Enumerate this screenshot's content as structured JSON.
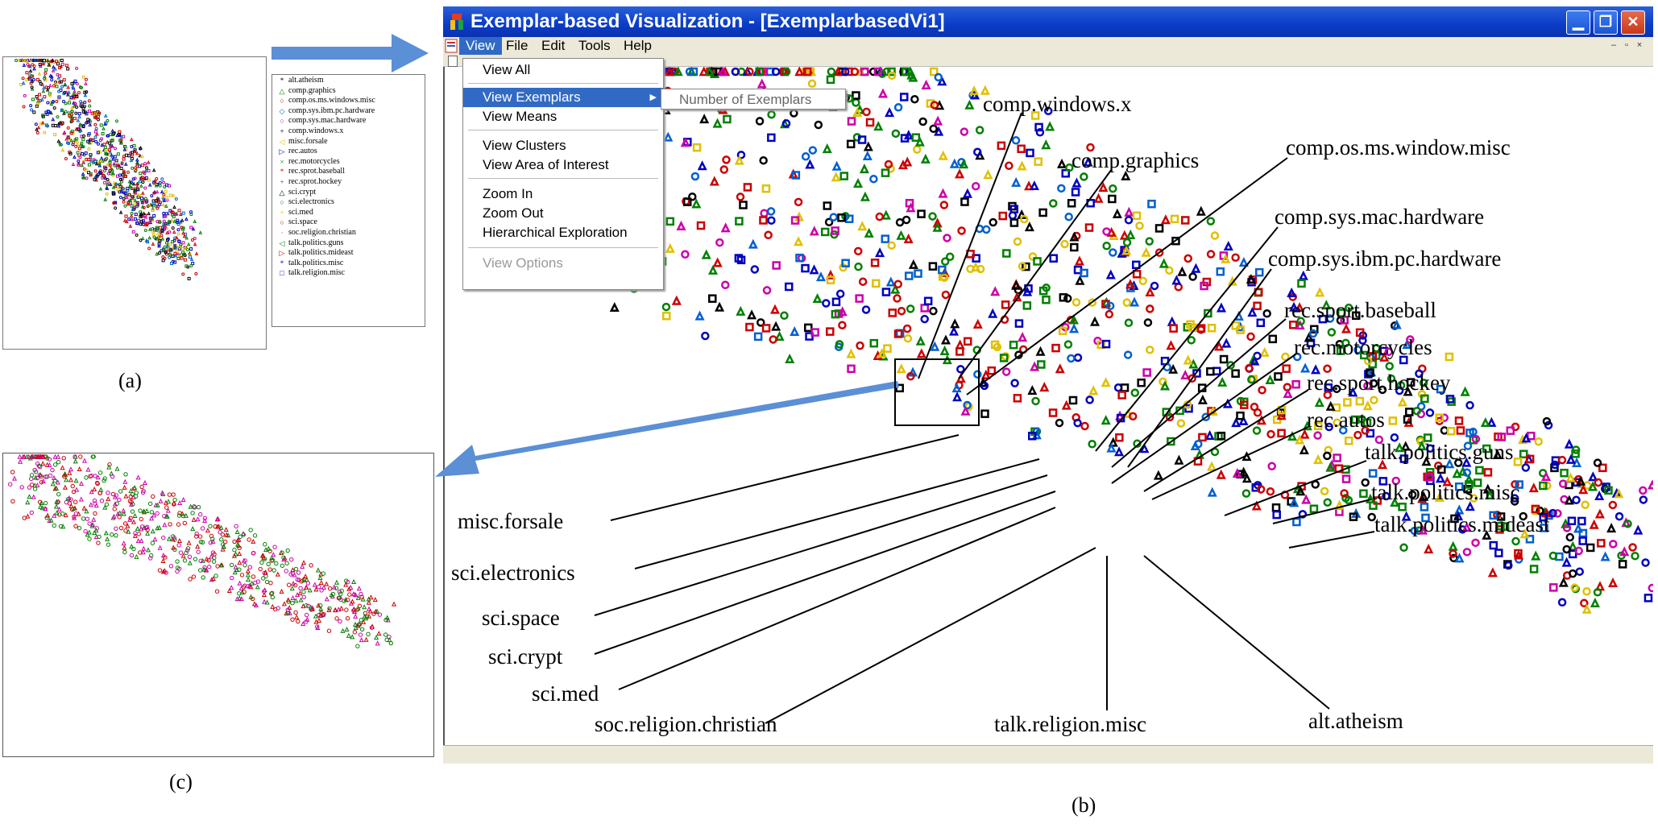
{
  "legend": [
    {
      "label": "alt.atheism",
      "symbol": "*",
      "color": "#000000"
    },
    {
      "label": "comp.graphics",
      "symbol": "△",
      "color": "#008000"
    },
    {
      "label": "comp.os.ms.windows.misc",
      "symbol": "○",
      "color": "#cc0000"
    },
    {
      "label": "comp.sys.ibm.pc.hardware",
      "symbol": "◇",
      "color": "#0060d0"
    },
    {
      "label": "comp.sys.mac.hardware",
      "symbol": "○",
      "color": "#cc00aa"
    },
    {
      "label": "comp.windows.x",
      "symbol": "+",
      "color": "#000000"
    },
    {
      "label": "misc.forsale",
      "symbol": "◁",
      "color": "#e0c000"
    },
    {
      "label": "rec.autos",
      "symbol": "▷",
      "color": "#0000c0"
    },
    {
      "label": "rec.motorcycles",
      "symbol": "×",
      "color": "#008000"
    },
    {
      "label": "rec.sprot.baseball",
      "symbol": "*",
      "color": "#cc0000"
    },
    {
      "label": "rec.sprot.hockey",
      "symbol": "+",
      "color": "#0060d0"
    },
    {
      "label": "sci.crypt",
      "symbol": "△",
      "color": "#000000"
    },
    {
      "label": "sci.electronics",
      "symbol": "○",
      "color": "#008000"
    },
    {
      "label": "sci.med",
      "symbol": "+",
      "color": "#e0c000"
    },
    {
      "label": "sci.space",
      "symbol": "○",
      "color": "#cc0000"
    },
    {
      "label": "soc.religion.christian",
      "symbol": "·",
      "color": "#cc00aa"
    },
    {
      "label": "talk.politics.guns",
      "symbol": "◁",
      "color": "#008000"
    },
    {
      "label": "talk.politics.mideast",
      "symbol": "▷",
      "color": "#cc0000"
    },
    {
      "label": "talk.politics.misc",
      "symbol": "*",
      "color": "#0000c0"
    },
    {
      "label": "talk.religion.misc",
      "symbol": "□",
      "color": "#0000c0"
    }
  ],
  "captions": {
    "a": "(a)",
    "b": "(b)",
    "c": "(c)"
  },
  "window": {
    "title": "Exemplar-based Visualization - [ExemplarbasedVi1]",
    "minimize": "▁",
    "restore": "❐",
    "close": "✕",
    "menus": [
      "View",
      "File",
      "Edit",
      "Tools",
      "Help"
    ],
    "mdi": {
      "min": "–",
      "restore": "▫",
      "close": "×"
    }
  },
  "view_menu": {
    "items": [
      "View All",
      "View Exemplars",
      "View Means",
      "View Clusters",
      "View Area of Interest",
      "Zoom In",
      "Zoom Out",
      "Hierarchical Exploration",
      "View Options"
    ],
    "submenu": "Number of Exemplars"
  },
  "labels": {
    "comp_windows_x": "comp.windows.x",
    "comp_graphics": "comp.graphics",
    "comp_os": "comp.os.ms.window.misc",
    "comp_mac": "comp.sys.mac.hardware",
    "comp_ibm": "comp.sys.ibm.pc.hardware",
    "rec_baseball": "rec.sport.baseball",
    "rec_motorcycles": "rec.motorcycles",
    "rec_hockey": "rec.sport.hockey",
    "rec_autos": "rec.autos",
    "talk_guns": "talk.politics.guns",
    "talk_misc": "talk.politics.misc",
    "talk_mideast": "talk.politics.mideast",
    "misc_forsale": "misc.forsale",
    "sci_electronics": "sci.electronics",
    "sci_space": "sci.space",
    "sci_crypt": "sci.crypt",
    "sci_med": "sci.med",
    "soc_christian": "soc.religion.christian",
    "talk_religion": "talk.religion.misc",
    "alt_atheism": "alt.atheism"
  },
  "colors": {
    "title_blue": "#0a3cc8",
    "menu_highlight": "#316ac5",
    "arrow": "#5b8fd6",
    "window_bg": "#ece9d8"
  }
}
